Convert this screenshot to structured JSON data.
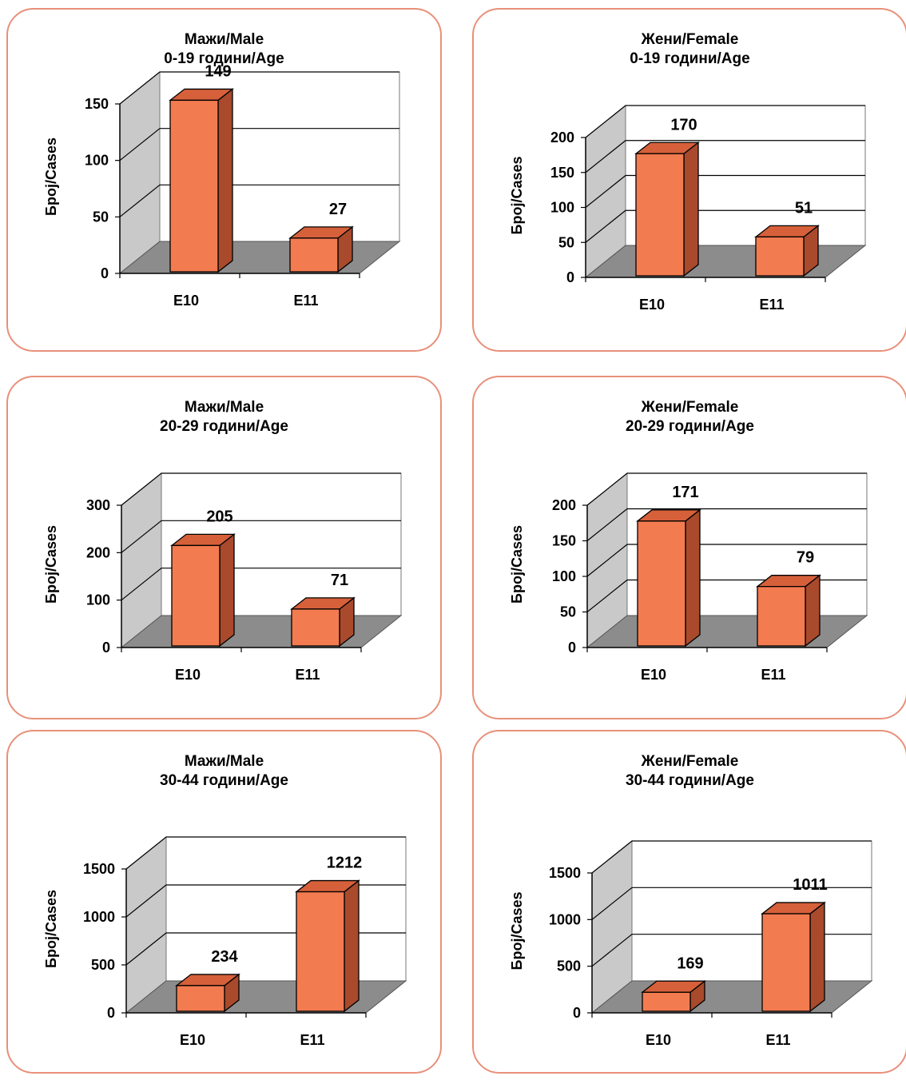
{
  "colors": {
    "border": "#e8907a",
    "bar_front": "#f37b50",
    "bar_top": "#d6603a",
    "bar_side": "#a94a2c",
    "floor": "#8c8c8c",
    "wall": "#c9c9c9",
    "gridline": "#000000"
  },
  "chart_data": [
    {
      "type": "bar",
      "title": "Мажи/Male",
      "subtitle": "0-19 години/Age",
      "ylabel": "Број/Cases",
      "categories": [
        "E10",
        "E11"
      ],
      "values": [
        149,
        27
      ],
      "ylim": [
        0,
        150
      ],
      "yticks": [
        "0",
        "50",
        "100",
        "150"
      ],
      "grid": true
    },
    {
      "type": "bar",
      "title": "Жени/Female",
      "subtitle": "0-19 години/Age",
      "ylabel": "Број/Cases",
      "categories": [
        "E10",
        "E11"
      ],
      "values": [
        170,
        51
      ],
      "ylim": [
        0,
        200
      ],
      "yticks": [
        "0",
        "50",
        "100",
        "150",
        "200"
      ],
      "grid": true
    },
    {
      "type": "bar",
      "title": "Мажи/Male",
      "subtitle": "20-29 години/Age",
      "ylabel": "Број/Cases",
      "categories": [
        "E10",
        "E11"
      ],
      "values": [
        205,
        71
      ],
      "ylim": [
        0,
        300
      ],
      "yticks": [
        "0",
        "100",
        "200",
        "300"
      ],
      "grid": true
    },
    {
      "type": "bar",
      "title": "Жени/Female",
      "subtitle": "20-29 години/Age",
      "ylabel": "Број/Cases",
      "categories": [
        "E10",
        "E11"
      ],
      "values": [
        171,
        79
      ],
      "ylim": [
        0,
        200
      ],
      "yticks": [
        "0",
        "50",
        "100",
        "150",
        "200"
      ],
      "grid": true
    },
    {
      "type": "bar",
      "title": "Мажи/Male",
      "subtitle": "30-44 години/Age",
      "ylabel": "Број/Cases",
      "categories": [
        "E10",
        "E11"
      ],
      "values": [
        234,
        1212
      ],
      "ylim": [
        0,
        1500
      ],
      "yticks": [
        "0",
        "500",
        "1000",
        "1500"
      ],
      "grid": true
    },
    {
      "type": "bar",
      "title": "Жени/Female",
      "subtitle": "30-44 години/Age",
      "ylabel": "Број/Cases",
      "categories": [
        "E10",
        "E11"
      ],
      "values": [
        169,
        1011
      ],
      "ylim": [
        0,
        1500
      ],
      "yticks": [
        "0",
        "500",
        "1000",
        "1500"
      ],
      "grid": true
    }
  ]
}
